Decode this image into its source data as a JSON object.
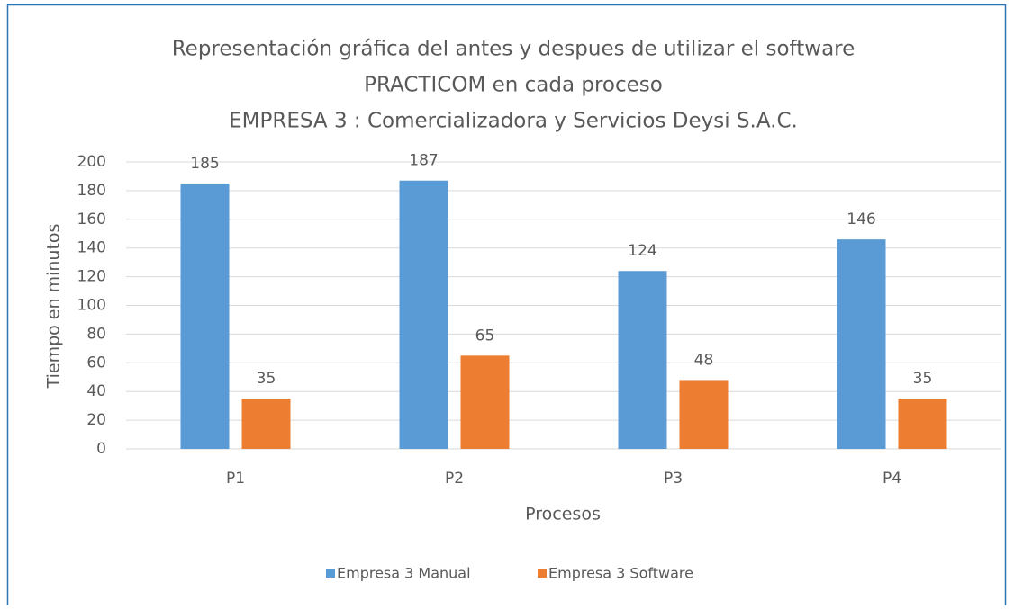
{
  "chart_data": {
    "type": "bar",
    "title": [
      "Representación gráfica del antes y despues de utilizar el software",
      "PRACTICOM en cada proceso",
      "EMPRESA 3 : Comercializadora y Servicios Deysi S.A.C."
    ],
    "x_label": "Procesos",
    "y_label": "Tiempo en minutos",
    "categories": [
      "P1",
      "P2",
      "P3",
      "P4"
    ],
    "series": [
      {
        "name": "Empresa 3 Manual",
        "color": "#5b9bd5",
        "values": [
          185,
          187,
          124,
          146
        ]
      },
      {
        "name": "Empresa 3 Software",
        "color": "#ed7d31",
        "values": [
          35,
          65,
          48,
          35
        ]
      }
    ],
    "ylim": [
      0,
      200
    ],
    "yticks": [
      0,
      20,
      40,
      60,
      80,
      100,
      120,
      140,
      160,
      180,
      200
    ],
    "grid": true,
    "legend": "bottom"
  }
}
